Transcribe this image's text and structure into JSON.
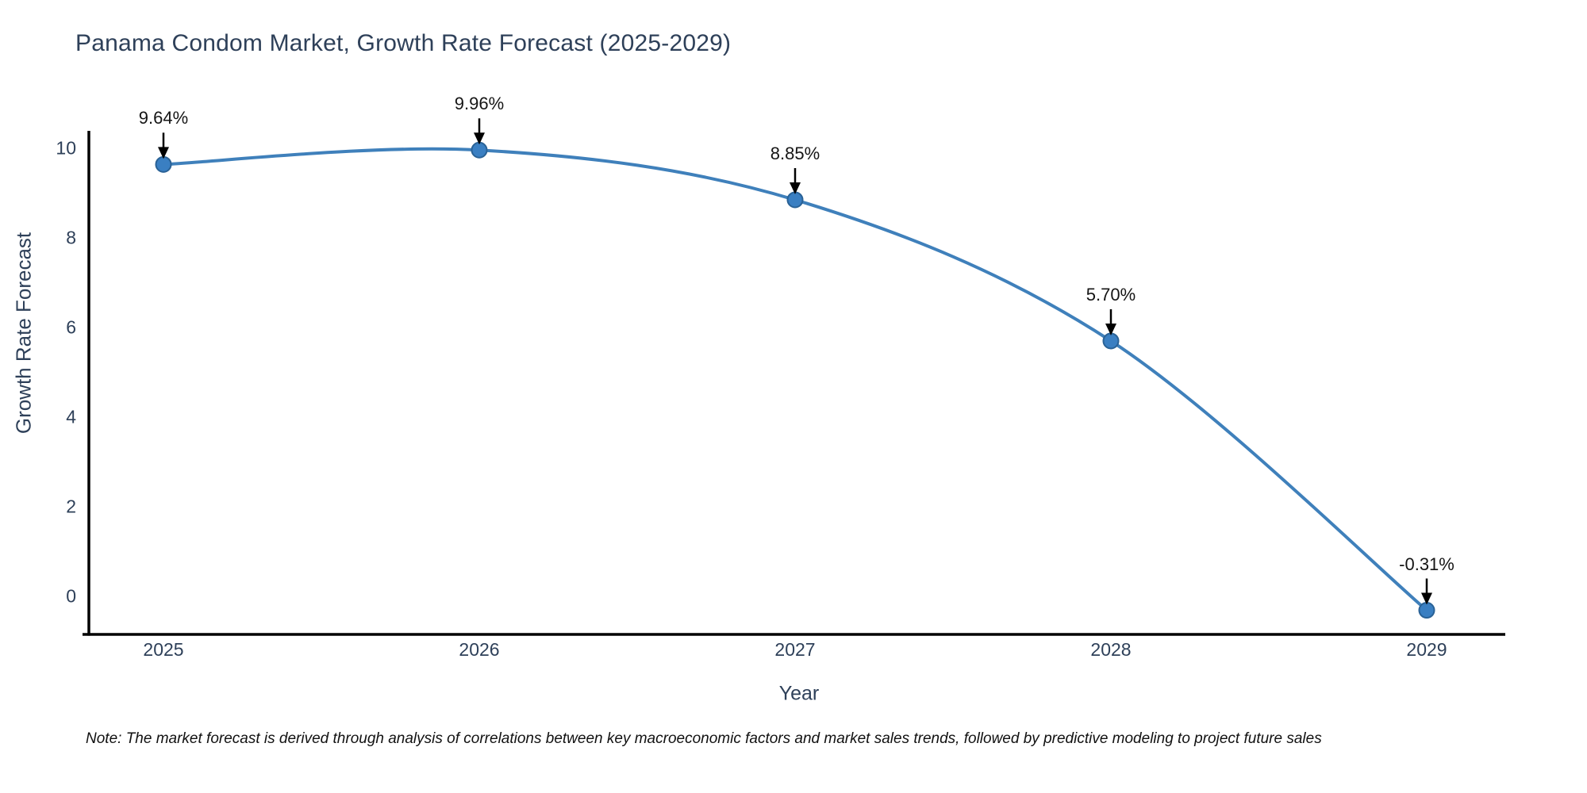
{
  "chart_data": {
    "type": "line",
    "title": "Panama Condom Market, Growth Rate Forecast (2025-2029)",
    "xlabel": "Year",
    "ylabel": "Growth Rate Forecast",
    "categories": [
      "2025",
      "2026",
      "2027",
      "2028",
      "2029"
    ],
    "values": [
      9.64,
      9.96,
      8.85,
      5.7,
      -0.31
    ],
    "point_labels": [
      "9.64%",
      "9.96%",
      "8.85%",
      "5.70%",
      "-0.31%"
    ],
    "yticks": [
      0,
      2,
      4,
      6,
      8,
      10
    ],
    "ytick_labels": [
      "0",
      "2",
      "4",
      "6",
      "8",
      "10"
    ],
    "ylim": [
      -0.85,
      10.4
    ],
    "grid": false,
    "legend": "none",
    "line_color": "#3f80bb",
    "marker_fill": "#3a7fc2",
    "marker_edge": "#2a6296",
    "axis_color": "#000000",
    "arrow_color": "#000000",
    "text_color": "#2e4059",
    "annotation_text_color": "#151515"
  },
  "note": "Note: The market forecast is derived through analysis of correlations between key macroeconomic factors and market sales trends, followed by predictive modeling to project future sales"
}
